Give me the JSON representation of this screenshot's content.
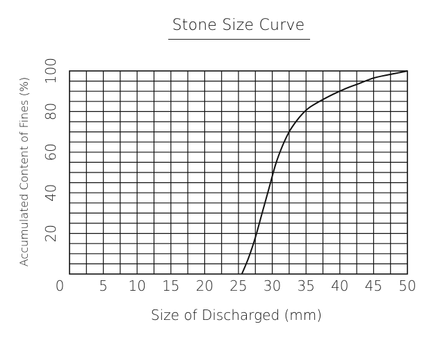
{
  "chart_data": {
    "type": "line",
    "title": "Stone Size Curve",
    "xlabel": "Size of Discharged (mm)",
    "ylabel": "Accumulated Content of Fines (%)",
    "xlim": [
      0,
      50
    ],
    "ylim": [
      0,
      100
    ],
    "x_ticks": [
      "0",
      "5",
      "10",
      "15",
      "20",
      "25",
      "30",
      "35",
      "40",
      "45",
      "50"
    ],
    "y_ticks": [
      "20",
      "40",
      "60",
      "80",
      "100"
    ],
    "grid": true,
    "x_grid_step": 2.5,
    "y_grid_step": 5,
    "series": [
      {
        "x": [
          25.5,
          26.5,
          27.5,
          28.5,
          29.5,
          30.5,
          31.5,
          32.5,
          33.5,
          34.5,
          35.5,
          37,
          39,
          41,
          43,
          45,
          47,
          49,
          50
        ],
        "y": [
          0,
          8,
          18,
          30,
          42,
          54,
          63,
          70,
          75,
          79,
          82,
          85,
          88.5,
          91.5,
          94,
          96.5,
          98,
          99.3,
          100
        ]
      }
    ]
  }
}
